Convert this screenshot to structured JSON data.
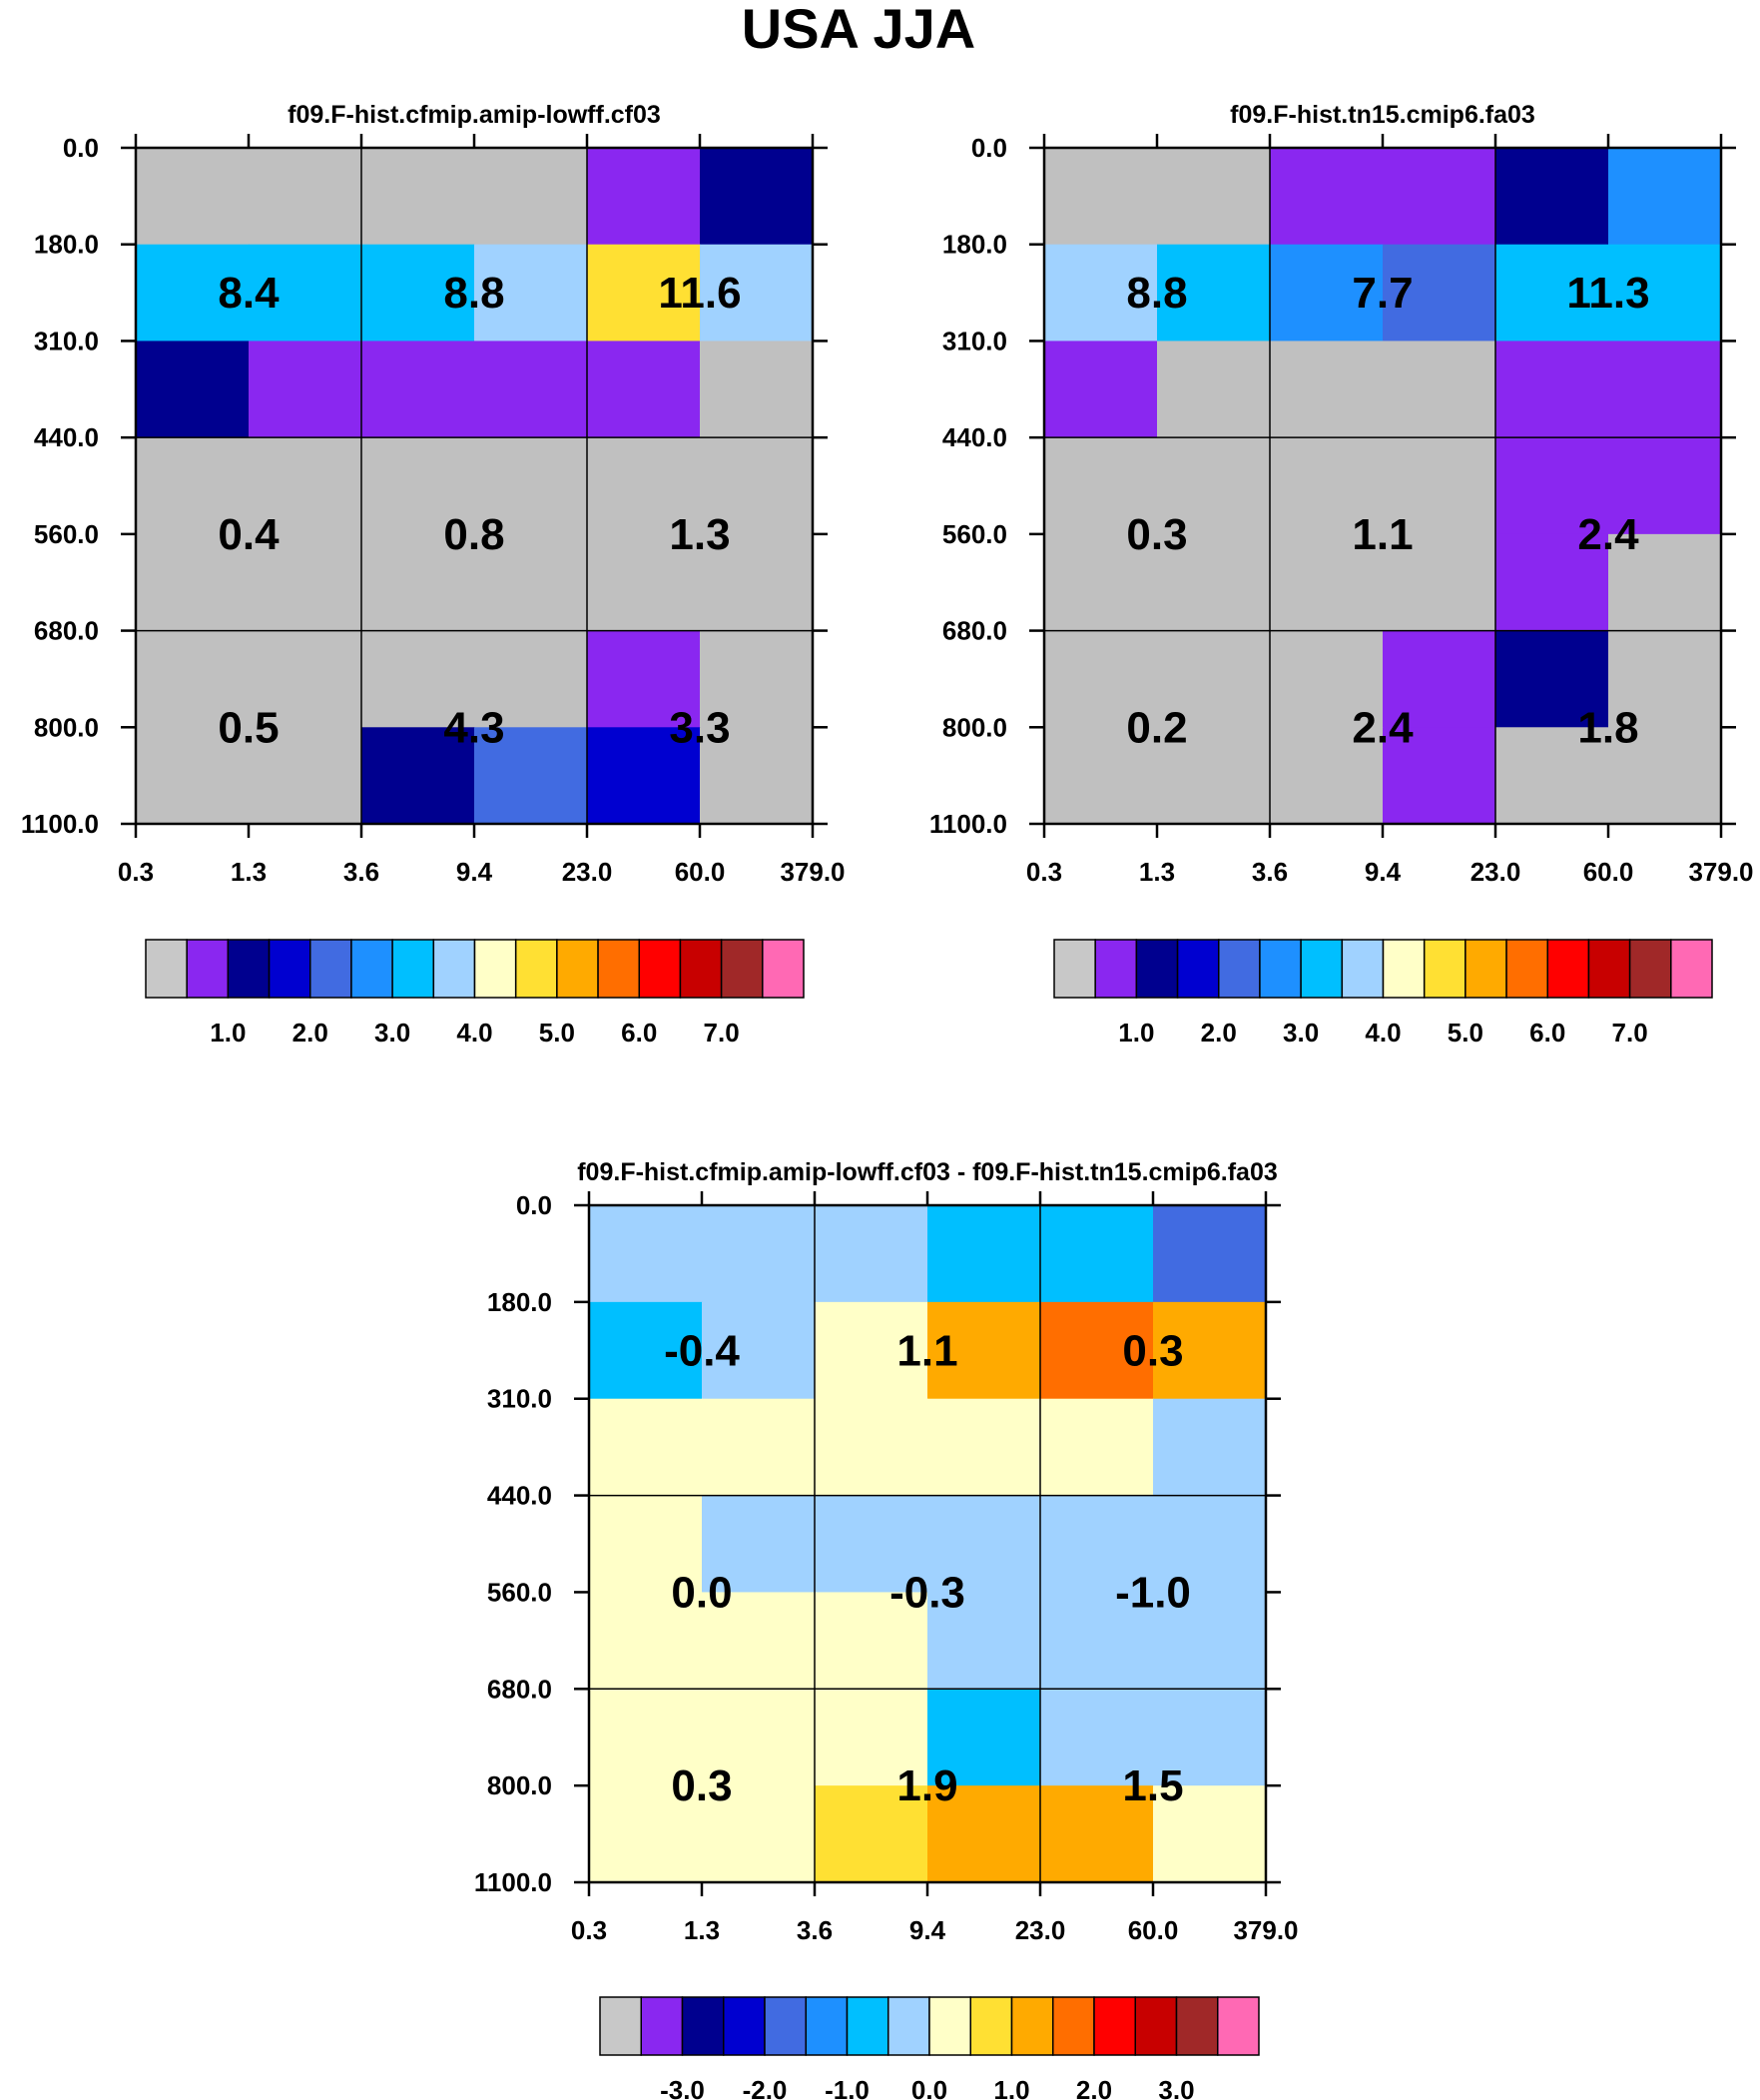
{
  "title": "USA JJA",
  "chart_data": [
    {
      "type": "heatmap",
      "title": "f09.F-hist.cfmip.amip-lowff.cf03",
      "x_ticks": [
        "0.3",
        "1.3",
        "3.6",
        "9.4",
        "23.0",
        "60.0",
        "379.0"
      ],
      "y_ticks": [
        "0.0",
        "180.0",
        "310.0",
        "440.0",
        "560.0",
        "680.0",
        "800.0",
        "1100.0"
      ],
      "cell_colors": [
        [
          "#c0c0c0",
          "#c0c0c0",
          "#c0c0c0",
          "#c0c0c0",
          "#8a27f0",
          "#00008f"
        ],
        [
          "#00bfff",
          "#00bfff",
          "#00bfff",
          "#a0d2ff",
          "#ffe033",
          "#a0d2ff"
        ],
        [
          "#00008f",
          "#8a27f0",
          "#8a27f0",
          "#8a27f0",
          "#8a27f0",
          "#c0c0c0"
        ],
        [
          "#c0c0c0",
          "#c0c0c0",
          "#c0c0c0",
          "#c0c0c0",
          "#c0c0c0",
          "#c0c0c0"
        ],
        [
          "#c0c0c0",
          "#c0c0c0",
          "#c0c0c0",
          "#c0c0c0",
          "#c0c0c0",
          "#c0c0c0"
        ],
        [
          "#c0c0c0",
          "#c0c0c0",
          "#c0c0c0",
          "#c0c0c0",
          "#8a27f0",
          "#c0c0c0"
        ],
        [
          "#c0c0c0",
          "#c0c0c0",
          "#00008f",
          "#416be1",
          "#0000d0",
          "#c0c0c0"
        ]
      ],
      "labels": [
        {
          "text": "8.4",
          "x": "1.3",
          "y": "245.0"
        },
        {
          "text": "8.8",
          "x": "9.4",
          "y": "245.0"
        },
        {
          "text": "11.6",
          "x": "60.0",
          "y": "245.0"
        },
        {
          "text": "0.4",
          "x": "1.3",
          "y": "500.0"
        },
        {
          "text": "0.8",
          "x": "9.4",
          "y": "500.0"
        },
        {
          "text": "1.3",
          "x": "60.0",
          "y": "500.0"
        },
        {
          "text": "0.5",
          "x": "1.3",
          "y": "800.0"
        },
        {
          "text": "4.3",
          "x": "9.4",
          "y": "800.0"
        },
        {
          "text": "3.3",
          "x": "60.0",
          "y": "800.0"
        }
      ],
      "colorbar": {
        "colors": [
          "#c8c8c8",
          "#8a27f0",
          "#00008f",
          "#0000d0",
          "#416be1",
          "#1e90ff",
          "#00bfff",
          "#a0d2ff",
          "#ffffc8",
          "#ffe033",
          "#ffaa00",
          "#ff6e00",
          "#ff0000",
          "#c80000",
          "#a02828",
          "#ff69b4"
        ],
        "tick_labels": [
          "1.0",
          "2.0",
          "3.0",
          "4.0",
          "5.0",
          "6.0",
          "7.0"
        ]
      }
    },
    {
      "type": "heatmap",
      "title": "f09.F-hist.tn15.cmip6.fa03",
      "x_ticks": [
        "0.3",
        "1.3",
        "3.6",
        "9.4",
        "23.0",
        "60.0",
        "379.0"
      ],
      "y_ticks": [
        "0.0",
        "180.0",
        "310.0",
        "440.0",
        "560.0",
        "680.0",
        "800.0",
        "1100.0"
      ],
      "cell_colors": [
        [
          "#c0c0c0",
          "#c0c0c0",
          "#8a27f0",
          "#8a27f0",
          "#00008f",
          "#1e90ff"
        ],
        [
          "#a0d2ff",
          "#00bfff",
          "#1e90ff",
          "#416be1",
          "#00bfff",
          "#00bfff"
        ],
        [
          "#8a27f0",
          "#c0c0c0",
          "#c0c0c0",
          "#c0c0c0",
          "#8a27f0",
          "#8a27f0"
        ],
        [
          "#c0c0c0",
          "#c0c0c0",
          "#c0c0c0",
          "#c0c0c0",
          "#8a27f0",
          "#8a27f0"
        ],
        [
          "#c0c0c0",
          "#c0c0c0",
          "#c0c0c0",
          "#c0c0c0",
          "#8a27f0",
          "#c0c0c0"
        ],
        [
          "#c0c0c0",
          "#c0c0c0",
          "#c0c0c0",
          "#8a27f0",
          "#00008f",
          "#c0c0c0"
        ],
        [
          "#c0c0c0",
          "#c0c0c0",
          "#c0c0c0",
          "#8a27f0",
          "#c0c0c0",
          "#c0c0c0"
        ]
      ],
      "labels": [
        {
          "text": "8.8",
          "x": "1.3",
          "y": "245.0"
        },
        {
          "text": "7.7",
          "x": "9.4",
          "y": "245.0"
        },
        {
          "text": "11.3",
          "x": "60.0",
          "y": "245.0"
        },
        {
          "text": "0.3",
          "x": "1.3",
          "y": "500.0"
        },
        {
          "text": "1.1",
          "x": "9.4",
          "y": "500.0"
        },
        {
          "text": "2.4",
          "x": "60.0",
          "y": "500.0"
        },
        {
          "text": "0.2",
          "x": "1.3",
          "y": "800.0"
        },
        {
          "text": "2.4",
          "x": "9.4",
          "y": "800.0"
        },
        {
          "text": "1.8",
          "x": "60.0",
          "y": "800.0"
        }
      ],
      "colorbar": {
        "colors": [
          "#c8c8c8",
          "#8a27f0",
          "#00008f",
          "#0000d0",
          "#416be1",
          "#1e90ff",
          "#00bfff",
          "#a0d2ff",
          "#ffffc8",
          "#ffe033",
          "#ffaa00",
          "#ff6e00",
          "#ff0000",
          "#c80000",
          "#a02828",
          "#ff69b4"
        ],
        "tick_labels": [
          "1.0",
          "2.0",
          "3.0",
          "4.0",
          "5.0",
          "6.0",
          "7.0"
        ]
      }
    },
    {
      "type": "heatmap",
      "title": "f09.F-hist.cfmip.amip-lowff.cf03 - f09.F-hist.tn15.cmip6.fa03",
      "x_ticks": [
        "0.3",
        "1.3",
        "3.6",
        "9.4",
        "23.0",
        "60.0",
        "379.0"
      ],
      "y_ticks": [
        "0.0",
        "180.0",
        "310.0",
        "440.0",
        "560.0",
        "680.0",
        "800.0",
        "1100.0"
      ],
      "cell_colors": [
        [
          "#a0d2ff",
          "#a0d2ff",
          "#a0d2ff",
          "#00bfff",
          "#00bfff",
          "#416be1"
        ],
        [
          "#00bfff",
          "#a0d2ff",
          "#ffffc8",
          "#ffaa00",
          "#ff6e00",
          "#ffaa00"
        ],
        [
          "#ffffc8",
          "#ffffc8",
          "#ffffc8",
          "#ffffc8",
          "#ffffc8",
          "#a0d2ff"
        ],
        [
          "#ffffc8",
          "#a0d2ff",
          "#a0d2ff",
          "#a0d2ff",
          "#a0d2ff",
          "#a0d2ff"
        ],
        [
          "#ffffc8",
          "#ffffc8",
          "#ffffc8",
          "#a0d2ff",
          "#a0d2ff",
          "#a0d2ff"
        ],
        [
          "#ffffc8",
          "#ffffc8",
          "#ffffc8",
          "#00bfff",
          "#a0d2ff",
          "#a0d2ff"
        ],
        [
          "#ffffc8",
          "#ffffc8",
          "#ffe033",
          "#ffaa00",
          "#ffaa00",
          "#ffffc8"
        ]
      ],
      "labels": [
        {
          "text": "-0.4",
          "x": "1.3",
          "y": "245.0"
        },
        {
          "text": "1.1",
          "x": "9.4",
          "y": "245.0"
        },
        {
          "text": "0.3",
          "x": "60.0",
          "y": "245.0"
        },
        {
          "text": "0.0",
          "x": "1.3",
          "y": "500.0"
        },
        {
          "text": "-0.3",
          "x": "9.4",
          "y": "500.0"
        },
        {
          "text": "-1.0",
          "x": "60.0",
          "y": "500.0"
        },
        {
          "text": "0.3",
          "x": "1.3",
          "y": "800.0"
        },
        {
          "text": "1.9",
          "x": "9.4",
          "y": "800.0"
        },
        {
          "text": "1.5",
          "x": "60.0",
          "y": "800.0"
        }
      ],
      "colorbar": {
        "colors": [
          "#c8c8c8",
          "#8a27f0",
          "#00008f",
          "#0000d0",
          "#416be1",
          "#1e90ff",
          "#00bfff",
          "#a0d2ff",
          "#ffffc8",
          "#ffe033",
          "#ffaa00",
          "#ff6e00",
          "#ff0000",
          "#c80000",
          "#a02828",
          "#ff69b4"
        ],
        "tick_labels": [
          "-3.0",
          "-2.0",
          "-1.0",
          "0.0",
          "1.0",
          "2.0",
          "3.0"
        ]
      }
    }
  ]
}
